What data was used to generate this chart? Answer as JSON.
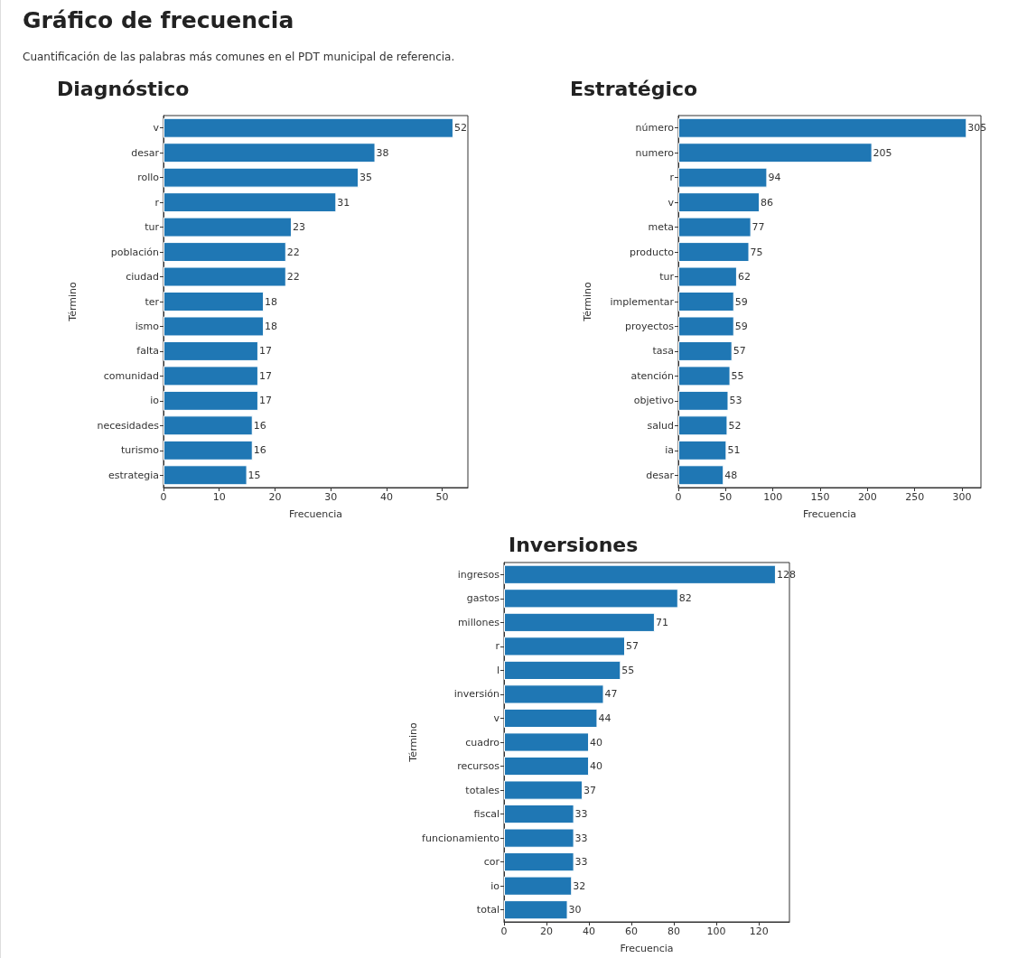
{
  "chart_data": [
    {
      "type": "other",
      "title": "Gráfico de frecuencia",
      "subtitle": "Cuantificación de las palabras más comunes en el PDT municipal de referencia."
    },
    {
      "type": "bar",
      "orientation": "horizontal",
      "title": "Diagnóstico",
      "xlabel": "Frecuencia",
      "ylabel": "Término",
      "categories": [
        "v",
        "desar",
        "rollo",
        "r",
        "tur",
        "población",
        "ciudad",
        "ter",
        "ismo",
        "falta",
        "comunidad",
        "io",
        "necesidades",
        "turismo",
        "estrategia"
      ],
      "values": [
        52,
        38,
        35,
        31,
        23,
        22,
        22,
        18,
        18,
        17,
        17,
        17,
        16,
        16,
        15
      ],
      "color": "#1f77b4",
      "xlim": [
        0,
        54.6
      ],
      "xticks": [
        0,
        10,
        20,
        30,
        40,
        50
      ],
      "data_labels": true,
      "grid": false
    },
    {
      "type": "bar",
      "orientation": "horizontal",
      "title": "Estratégico",
      "xlabel": "Frecuencia",
      "ylabel": "Término",
      "categories": [
        "número",
        "numero",
        "r",
        "v",
        "meta",
        "producto",
        "tur",
        "implementar",
        "proyectos",
        "tasa",
        "atención",
        "objetivo",
        "salud",
        "ia",
        "desar"
      ],
      "values": [
        305,
        205,
        94,
        86,
        77,
        75,
        62,
        59,
        59,
        57,
        55,
        53,
        52,
        51,
        48
      ],
      "color": "#1f77b4",
      "xlim": [
        0,
        320
      ],
      "xticks": [
        0,
        50,
        100,
        150,
        200,
        250,
        300
      ],
      "data_labels": true,
      "grid": false
    },
    {
      "type": "bar",
      "orientation": "horizontal",
      "title": "Inversiones",
      "xlabel": "Frecuencia",
      "ylabel": "Término",
      "categories": [
        "ingresos",
        "gastos",
        "millones",
        "r",
        "l",
        "inversión",
        "v",
        "cuadro",
        "recursos",
        "totales",
        "fiscal",
        "funcionamiento",
        "cor",
        "io",
        "total"
      ],
      "values": [
        128,
        82,
        71,
        57,
        55,
        47,
        44,
        40,
        40,
        37,
        33,
        33,
        33,
        32,
        30
      ],
      "color": "#1f77b4",
      "xlim": [
        0,
        134.4
      ],
      "xticks": [
        0,
        20,
        40,
        60,
        80,
        100,
        120
      ],
      "data_labels": true,
      "grid": false
    }
  ]
}
